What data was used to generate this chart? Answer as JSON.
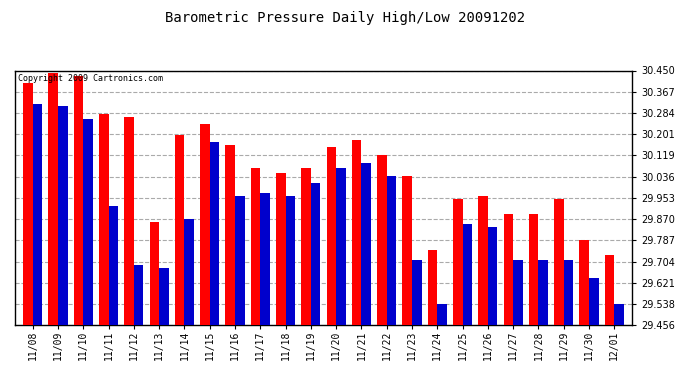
{
  "title": "Barometric Pressure Daily High/Low 20091202",
  "copyright_text": "Copyright 2009 Cartronics.com",
  "dates": [
    "11/08",
    "11/09",
    "11/10",
    "11/11",
    "11/12",
    "11/13",
    "11/14",
    "11/15",
    "11/16",
    "11/17",
    "11/18",
    "11/19",
    "11/20",
    "11/21",
    "11/22",
    "11/23",
    "11/24",
    "11/25",
    "11/26",
    "11/27",
    "11/28",
    "11/29",
    "11/30",
    "12/01"
  ],
  "highs": [
    30.4,
    30.44,
    30.43,
    30.28,
    30.27,
    29.86,
    30.2,
    30.24,
    30.16,
    30.07,
    30.05,
    30.07,
    30.15,
    30.18,
    30.12,
    30.04,
    29.75,
    29.95,
    29.96,
    29.89,
    29.89,
    29.95,
    29.79,
    29.73
  ],
  "lows": [
    30.32,
    30.31,
    30.26,
    29.92,
    29.69,
    29.68,
    29.87,
    30.17,
    29.96,
    29.97,
    29.96,
    30.01,
    30.07,
    30.09,
    30.04,
    29.71,
    29.54,
    29.85,
    29.84,
    29.71,
    29.71,
    29.71,
    29.64,
    29.54
  ],
  "high_color": "#FF0000",
  "low_color": "#0000CC",
  "bg_color": "#FFFFFF",
  "plot_bg_color": "#FFFFFF",
  "grid_color": "#AAAAAA",
  "ymin": 29.456,
  "ymax": 30.45,
  "yticks": [
    29.456,
    29.538,
    29.621,
    29.704,
    29.787,
    29.87,
    29.953,
    30.036,
    30.119,
    30.201,
    30.284,
    30.367,
    30.45
  ],
  "bar_width": 0.38,
  "title_fontsize": 10,
  "tick_fontsize": 7,
  "copyright_fontsize": 6
}
